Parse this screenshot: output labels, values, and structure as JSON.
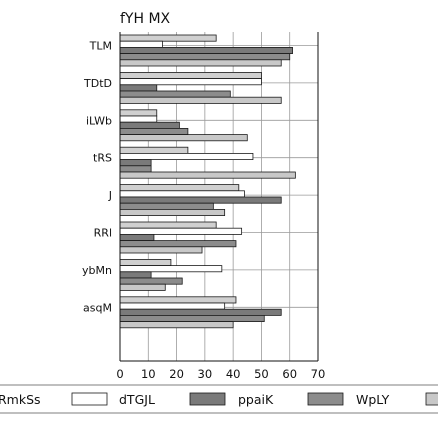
{
  "chart_data": {
    "type": "bar",
    "orientation": "horizontal",
    "title": "fYH MX",
    "xlim": [
      0,
      70
    ],
    "x_ticks": [
      0,
      10,
      20,
      30,
      40,
      50,
      60,
      70
    ],
    "grid": true,
    "legend_position": "bottom",
    "categories": [
      "TLM",
      "TDtD",
      "iLWb",
      "tRS",
      "J",
      "RRl",
      "ybMn",
      "asqM"
    ],
    "series": [
      {
        "name": "RmkSs",
        "color": "#d0d0d0",
        "values": [
          34,
          50,
          13,
          24,
          42,
          34,
          18,
          41
        ]
      },
      {
        "name": "dTGJL",
        "color": "#ffffff",
        "values": [
          15,
          50,
          13,
          47,
          44,
          43,
          36,
          37
        ]
      },
      {
        "name": "ppaiK",
        "color": "#7a7a7a",
        "values": [
          61,
          13,
          21,
          11,
          57,
          12,
          11,
          57
        ]
      },
      {
        "name": "WpLY",
        "color": "#8c8c8c",
        "values": [
          60,
          39,
          24,
          11,
          33,
          41,
          22,
          51
        ]
      },
      {
        "name": "",
        "color": "#c8c8c8",
        "values": [
          57,
          57,
          45,
          62,
          37,
          29,
          16,
          40
        ]
      }
    ]
  }
}
